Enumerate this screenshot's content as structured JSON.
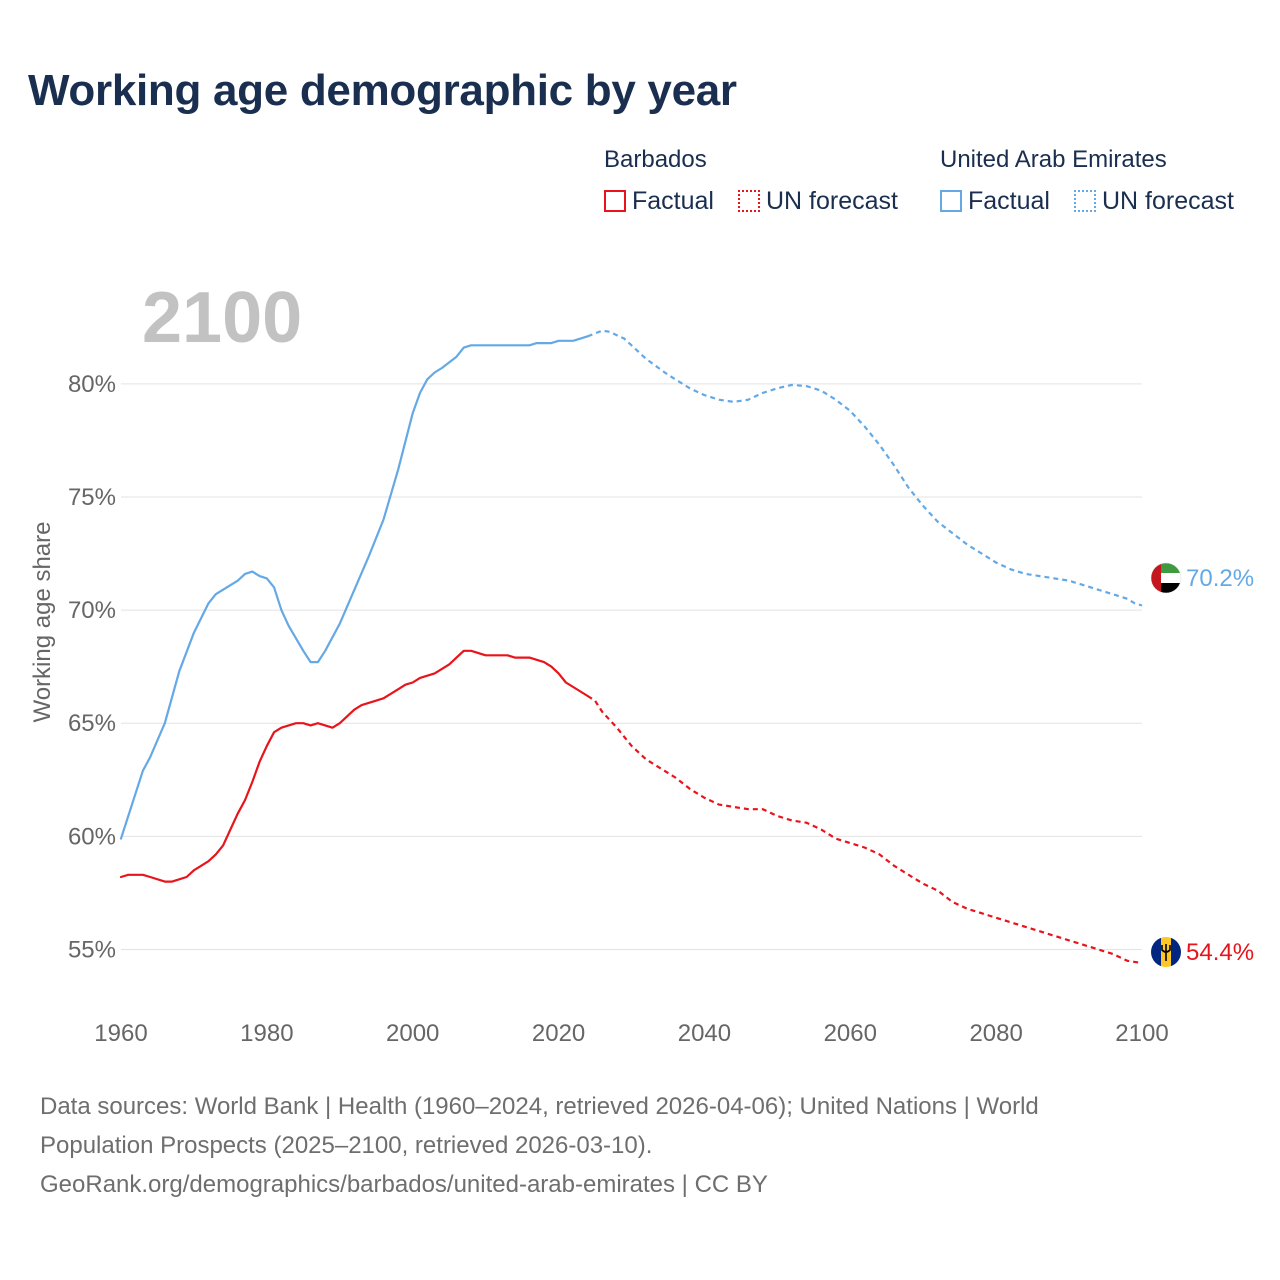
{
  "title": "Working age demographic by year",
  "legend": {
    "groups": [
      {
        "name": "Barbados",
        "factual_label": "Factual",
        "forecast_label": "UN forecast",
        "color": "#e8141b"
      },
      {
        "name": "United Arab Emirates",
        "factual_label": "Factual",
        "forecast_label": "UN forecast",
        "color": "#64a9e6"
      }
    ]
  },
  "footer": {
    "line1": "Data sources: World Bank | Health (1960–2024, retrieved 2026-04-06); United Nations | World",
    "line2": "Population Prospects (2025–2100, retrieved 2026-03-10).",
    "line3": "GeoRank.org/demographics/barbados/united-arab-emirates | CC BY"
  },
  "chart_data": {
    "type": "line",
    "title": "Working age demographic by year",
    "year_watermark": "2100",
    "xlabel": "",
    "ylabel": "Working age share",
    "xlim": [
      1960,
      2100
    ],
    "ylim": [
      52.5,
      84.5
    ],
    "x_ticks": [
      1960,
      1980,
      2000,
      2020,
      2040,
      2060,
      2080,
      2100
    ],
    "x_tick_labels": [
      "1960",
      "1980",
      "2000",
      "2020",
      "2040",
      "2060",
      "2080",
      "2100"
    ],
    "y_ticks": [
      55,
      60,
      65,
      70,
      75,
      80
    ],
    "y_tick_labels": [
      "55%",
      "60%",
      "65%",
      "70%",
      "75%",
      "80%"
    ],
    "grid": true,
    "factual_end_year": 2024,
    "series": [
      {
        "name": "United Arab Emirates",
        "color": "#64a9e6",
        "end_label": "70.2%",
        "points": [
          [
            1960,
            59.9
          ],
          [
            1962,
            61.9
          ],
          [
            1963,
            62.9
          ],
          [
            1964,
            63.5
          ],
          [
            1966,
            65.0
          ],
          [
            1968,
            67.3
          ],
          [
            1970,
            69.0
          ],
          [
            1972,
            70.3
          ],
          [
            1973,
            70.7
          ],
          [
            1974,
            70.9
          ],
          [
            1976,
            71.3
          ],
          [
            1977,
            71.6
          ],
          [
            1978,
            71.7
          ],
          [
            1979,
            71.5
          ],
          [
            1980,
            71.4
          ],
          [
            1981,
            71.0
          ],
          [
            1982,
            70.0
          ],
          [
            1983,
            69.3
          ],
          [
            1985,
            68.2
          ],
          [
            1986,
            67.7
          ],
          [
            1987,
            67.7
          ],
          [
            1988,
            68.2
          ],
          [
            1990,
            69.4
          ],
          [
            1992,
            70.9
          ],
          [
            1994,
            72.4
          ],
          [
            1996,
            74.0
          ],
          [
            1998,
            76.2
          ],
          [
            2000,
            78.7
          ],
          [
            2001,
            79.6
          ],
          [
            2002,
            80.2
          ],
          [
            2003,
            80.5
          ],
          [
            2004,
            80.7
          ],
          [
            2006,
            81.2
          ],
          [
            2007,
            81.6
          ],
          [
            2008,
            81.7
          ],
          [
            2010,
            81.7
          ],
          [
            2012,
            81.7
          ],
          [
            2014,
            81.7
          ],
          [
            2016,
            81.7
          ],
          [
            2017,
            81.8
          ],
          [
            2018,
            81.8
          ],
          [
            2019,
            81.8
          ],
          [
            2020,
            81.9
          ],
          [
            2022,
            81.9
          ],
          [
            2024,
            82.1
          ],
          [
            2026,
            82.35
          ],
          [
            2027,
            82.3
          ],
          [
            2029,
            82.0
          ],
          [
            2030,
            81.7
          ],
          [
            2032,
            81.1
          ],
          [
            2035,
            80.4
          ],
          [
            2038,
            79.8
          ],
          [
            2040,
            79.5
          ],
          [
            2042,
            79.3
          ],
          [
            2044,
            79.2
          ],
          [
            2046,
            79.3
          ],
          [
            2048,
            79.6
          ],
          [
            2050,
            79.8
          ],
          [
            2052,
            79.95
          ],
          [
            2054,
            79.9
          ],
          [
            2056,
            79.7
          ],
          [
            2058,
            79.3
          ],
          [
            2060,
            78.8
          ],
          [
            2062,
            78.1
          ],
          [
            2064,
            77.3
          ],
          [
            2066,
            76.4
          ],
          [
            2068,
            75.4
          ],
          [
            2070,
            74.6
          ],
          [
            2072,
            73.9
          ],
          [
            2074,
            73.4
          ],
          [
            2076,
            72.9
          ],
          [
            2078,
            72.5
          ],
          [
            2080,
            72.1
          ],
          [
            2082,
            71.8
          ],
          [
            2084,
            71.6
          ],
          [
            2086,
            71.5
          ],
          [
            2088,
            71.4
          ],
          [
            2090,
            71.3
          ],
          [
            2092,
            71.1
          ],
          [
            2094,
            70.9
          ],
          [
            2096,
            70.7
          ],
          [
            2098,
            70.5
          ],
          [
            2099,
            70.3
          ],
          [
            2100,
            70.2
          ]
        ]
      },
      {
        "name": "Barbados",
        "color": "#e8141b",
        "end_label": "54.4%",
        "points": [
          [
            1960,
            58.2
          ],
          [
            1961,
            58.3
          ],
          [
            1963,
            58.3
          ],
          [
            1964,
            58.2
          ],
          [
            1966,
            58.0
          ],
          [
            1967,
            58.0
          ],
          [
            1969,
            58.2
          ],
          [
            1970,
            58.5
          ],
          [
            1972,
            58.9
          ],
          [
            1973,
            59.2
          ],
          [
            1974,
            59.6
          ],
          [
            1975,
            60.3
          ],
          [
            1976,
            61.0
          ],
          [
            1977,
            61.6
          ],
          [
            1978,
            62.4
          ],
          [
            1979,
            63.3
          ],
          [
            1980,
            64.0
          ],
          [
            1981,
            64.6
          ],
          [
            1982,
            64.8
          ],
          [
            1984,
            65.0
          ],
          [
            1985,
            65.0
          ],
          [
            1986,
            64.9
          ],
          [
            1987,
            65.0
          ],
          [
            1988,
            64.9
          ],
          [
            1989,
            64.8
          ],
          [
            1990,
            65.0
          ],
          [
            1992,
            65.6
          ],
          [
            1993,
            65.8
          ],
          [
            1995,
            66.0
          ],
          [
            1996,
            66.1
          ],
          [
            1998,
            66.5
          ],
          [
            1999,
            66.7
          ],
          [
            2000,
            66.8
          ],
          [
            2001,
            67.0
          ],
          [
            2002,
            67.1
          ],
          [
            2003,
            67.2
          ],
          [
            2005,
            67.6
          ],
          [
            2006,
            67.9
          ],
          [
            2007,
            68.2
          ],
          [
            2008,
            68.2
          ],
          [
            2010,
            68.0
          ],
          [
            2012,
            68.0
          ],
          [
            2013,
            68.0
          ],
          [
            2014,
            67.9
          ],
          [
            2016,
            67.9
          ],
          [
            2018,
            67.7
          ],
          [
            2019,
            67.5
          ],
          [
            2020,
            67.2
          ],
          [
            2021,
            66.8
          ],
          [
            2022,
            66.6
          ],
          [
            2024,
            66.2
          ],
          [
            2025,
            66.0
          ],
          [
            2026,
            65.5
          ],
          [
            2028,
            64.8
          ],
          [
            2030,
            64.0
          ],
          [
            2032,
            63.4
          ],
          [
            2034,
            63.0
          ],
          [
            2036,
            62.6
          ],
          [
            2038,
            62.1
          ],
          [
            2040,
            61.7
          ],
          [
            2042,
            61.4
          ],
          [
            2044,
            61.3
          ],
          [
            2046,
            61.2
          ],
          [
            2048,
            61.2
          ],
          [
            2050,
            60.9
          ],
          [
            2052,
            60.7
          ],
          [
            2054,
            60.6
          ],
          [
            2056,
            60.3
          ],
          [
            2058,
            59.9
          ],
          [
            2060,
            59.7
          ],
          [
            2062,
            59.5
          ],
          [
            2064,
            59.2
          ],
          [
            2066,
            58.7
          ],
          [
            2068,
            58.3
          ],
          [
            2070,
            57.9
          ],
          [
            2072,
            57.6
          ],
          [
            2074,
            57.1
          ],
          [
            2076,
            56.8
          ],
          [
            2078,
            56.6
          ],
          [
            2080,
            56.4
          ],
          [
            2082,
            56.2
          ],
          [
            2084,
            56.0
          ],
          [
            2086,
            55.8
          ],
          [
            2088,
            55.6
          ],
          [
            2090,
            55.4
          ],
          [
            2092,
            55.2
          ],
          [
            2094,
            55.0
          ],
          [
            2096,
            54.8
          ],
          [
            2098,
            54.5
          ],
          [
            2100,
            54.4
          ]
        ]
      }
    ]
  }
}
